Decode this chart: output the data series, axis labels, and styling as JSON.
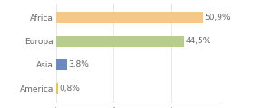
{
  "categories": [
    "Africa",
    "Europa",
    "Asia",
    "America"
  ],
  "values": [
    50.9,
    44.5,
    3.8,
    0.8
  ],
  "labels": [
    "50,9%",
    "44,5%",
    "3,8%",
    "0,8%"
  ],
  "bar_colors": [
    "#f5c88a",
    "#b8cc8e",
    "#6b8abf",
    "#e8c84a"
  ],
  "background_color": "#ffffff",
  "xlim": [
    0,
    58
  ],
  "bar_height": 0.45,
  "label_fontsize": 6.5,
  "ytick_fontsize": 6.5,
  "label_color": "#666666",
  "ytick_color": "#666666",
  "spine_color": "#cccccc",
  "grid_color": "#e0e0e0"
}
